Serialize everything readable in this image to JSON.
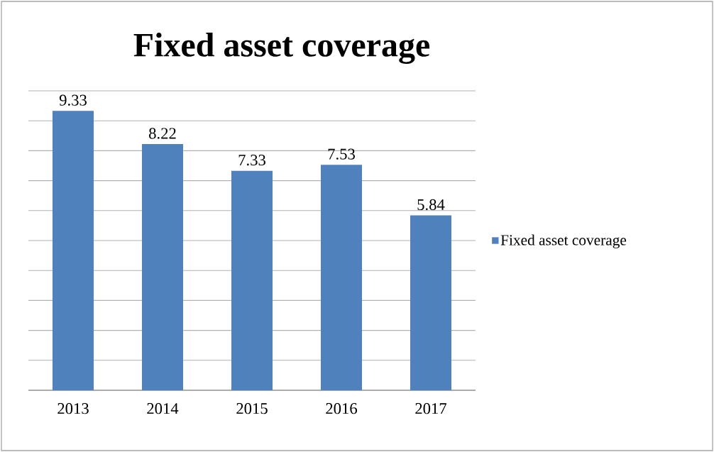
{
  "chart_data": {
    "type": "bar",
    "title": "Fixed asset coverage",
    "categories": [
      "2013",
      "2014",
      "2015",
      "2016",
      "2017"
    ],
    "series": [
      {
        "name": "Fixed asset coverage",
        "color": "#4f81bd",
        "values": [
          9.33,
          8.22,
          7.33,
          7.53,
          5.84
        ]
      }
    ],
    "ylim": [
      0,
      10
    ],
    "yticks": [
      {
        "value": 0,
        "label": null
      },
      {
        "value": 1,
        "label": null
      },
      {
        "value": 2,
        "label": null
      },
      {
        "value": 3,
        "label": null
      },
      {
        "value": 4,
        "label": null
      },
      {
        "value": 5,
        "label": null
      },
      {
        "value": 6,
        "label": null
      },
      {
        "value": 7,
        "label": null
      },
      {
        "value": 8,
        "label": null
      },
      {
        "value": 9,
        "label": null
      },
      {
        "value": 10,
        "label": null
      }
    ],
    "tick_labels": "x",
    "grid": "y",
    "legend": "right",
    "data_labels": true
  }
}
